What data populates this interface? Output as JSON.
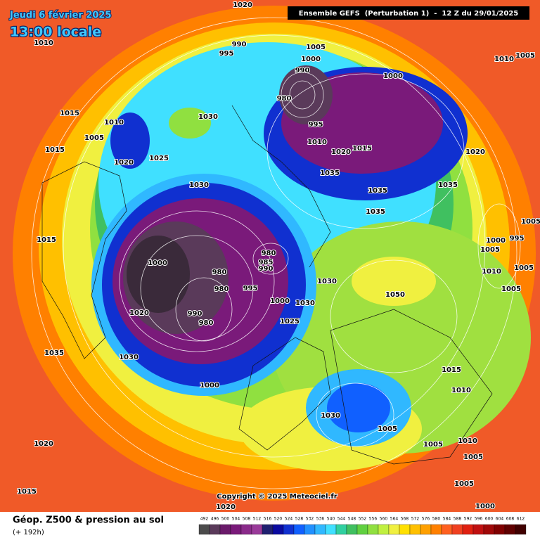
{
  "header": {
    "date": "Jeudi 6 février 2025",
    "time": "13:00 locale",
    "run": "Ensemble GEFS  (Perturbation 1)  -  12 Z du 29/01/2025"
  },
  "copyright": "Copyright © 2025 Meteociel.fr",
  "footer": {
    "title": "Géop. Z500 & pression au sol",
    "lead": "(+ 192h)"
  },
  "legend": {
    "values": [
      492,
      496,
      500,
      504,
      508,
      512,
      516,
      520,
      524,
      528,
      532,
      536,
      540,
      544,
      548,
      552,
      556,
      560,
      564,
      568,
      572,
      576,
      580,
      584,
      588,
      592,
      596,
      600,
      604,
      608,
      612
    ],
    "colors": [
      "#4b4b4b",
      "#5a3a5a",
      "#6a1a6a",
      "#7a1a7a",
      "#8a2a8a",
      "#9a3a9a",
      "#202070",
      "#0a0aa0",
      "#1030d0",
      "#1060ff",
      "#2090ff",
      "#30b8ff",
      "#40e0ff",
      "#30d0a0",
      "#40c060",
      "#60d040",
      "#90e040",
      "#c0f040",
      "#f0f040",
      "#ffe000",
      "#ffc000",
      "#ffa000",
      "#ff8000",
      "#ff6020",
      "#f04020",
      "#e02010",
      "#c01010",
      "#a00808",
      "#800000",
      "#600000",
      "#400000"
    ]
  },
  "isobar_labels": [
    1020,
    1010,
    990,
    995,
    1005,
    1000,
    1010,
    1005,
    990,
    1000,
    980,
    1015,
    1030,
    1010,
    995,
    1005,
    1010,
    1015,
    1020,
    1020,
    1015,
    1020,
    1025,
    1035,
    1030,
    1035,
    1035,
    1035,
    1005,
    1015,
    1000,
    995,
    980,
    1005,
    985,
    990,
    1000,
    980,
    1010,
    1005,
    995,
    980,
    1030,
    1050,
    1005,
    1000,
    1030,
    1020,
    990,
    980,
    1025,
    1035,
    1030,
    1015,
    1000,
    1010,
    1030,
    1005,
    1020,
    1005,
    1010,
    1005,
    1005,
    1015,
    1000,
    1020
  ]
}
